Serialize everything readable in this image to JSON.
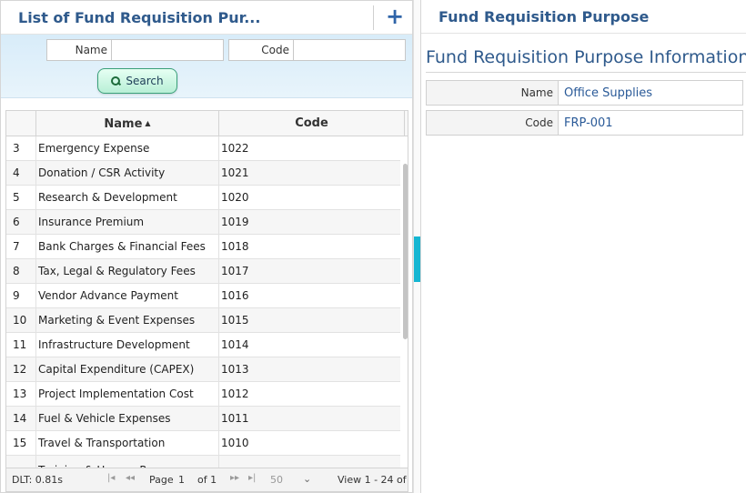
{
  "list_panel": {
    "title": "List of Fund Requisition Pur...",
    "add_icon": "plus-icon",
    "search": {
      "name_label": "Name",
      "name_value": "",
      "code_label": "Code",
      "code_value": "",
      "button_label": "Search",
      "button_icon": "search-icon"
    },
    "columns": {
      "name": "Name",
      "code": "Code",
      "sort_icon": "sort-ascending-icon"
    },
    "rows": [
      {
        "rn": "3",
        "name": "Emergency Expense",
        "code": "1022"
      },
      {
        "rn": "4",
        "name": "Donation / CSR Activity",
        "code": "1021"
      },
      {
        "rn": "5",
        "name": "Research & Development",
        "code": "1020"
      },
      {
        "rn": "6",
        "name": "Insurance Premium",
        "code": "1019"
      },
      {
        "rn": "7",
        "name": "Bank Charges & Financial Fees",
        "code": "1018"
      },
      {
        "rn": "8",
        "name": "Tax, Legal & Regulatory Fees",
        "code": "1017"
      },
      {
        "rn": "9",
        "name": "Vendor Advance Payment",
        "code": "1016"
      },
      {
        "rn": "10",
        "name": "Marketing & Event Expenses",
        "code": "1015"
      },
      {
        "rn": "11",
        "name": "Infrastructure Development",
        "code": "1014"
      },
      {
        "rn": "12",
        "name": "Capital Expenditure (CAPEX)",
        "code": "1013"
      },
      {
        "rn": "13",
        "name": "Project Implementation Cost",
        "code": "1012"
      },
      {
        "rn": "14",
        "name": "Fuel & Vehicle Expenses",
        "code": "1011"
      },
      {
        "rn": "15",
        "name": "Travel & Transportation",
        "code": "1010"
      },
      {
        "rn": "",
        "name": "Training & Human Resource",
        "code": ""
      }
    ],
    "pager": {
      "dlt": "DLT: 0.81s",
      "first": "|◂",
      "prev": "◂◂",
      "page_label": "Page",
      "page_value": "1",
      "of_label": "of 1",
      "next": "▸▸",
      "last": "▸|",
      "page_size": "50",
      "view_info": "View 1 - 24 of"
    }
  },
  "detail_panel": {
    "title": "Fund Requisition Purpose",
    "info_title": "Fund Requisition Purpose Information",
    "fields": [
      {
        "label": "Name",
        "value": "Office Supplies"
      },
      {
        "label": "Code",
        "value": "FRP-001"
      }
    ]
  },
  "colors": {
    "title_blue": "#2f5a8c",
    "splitter_accent": "#15b6d2",
    "value_blue": "#2a5a98"
  }
}
